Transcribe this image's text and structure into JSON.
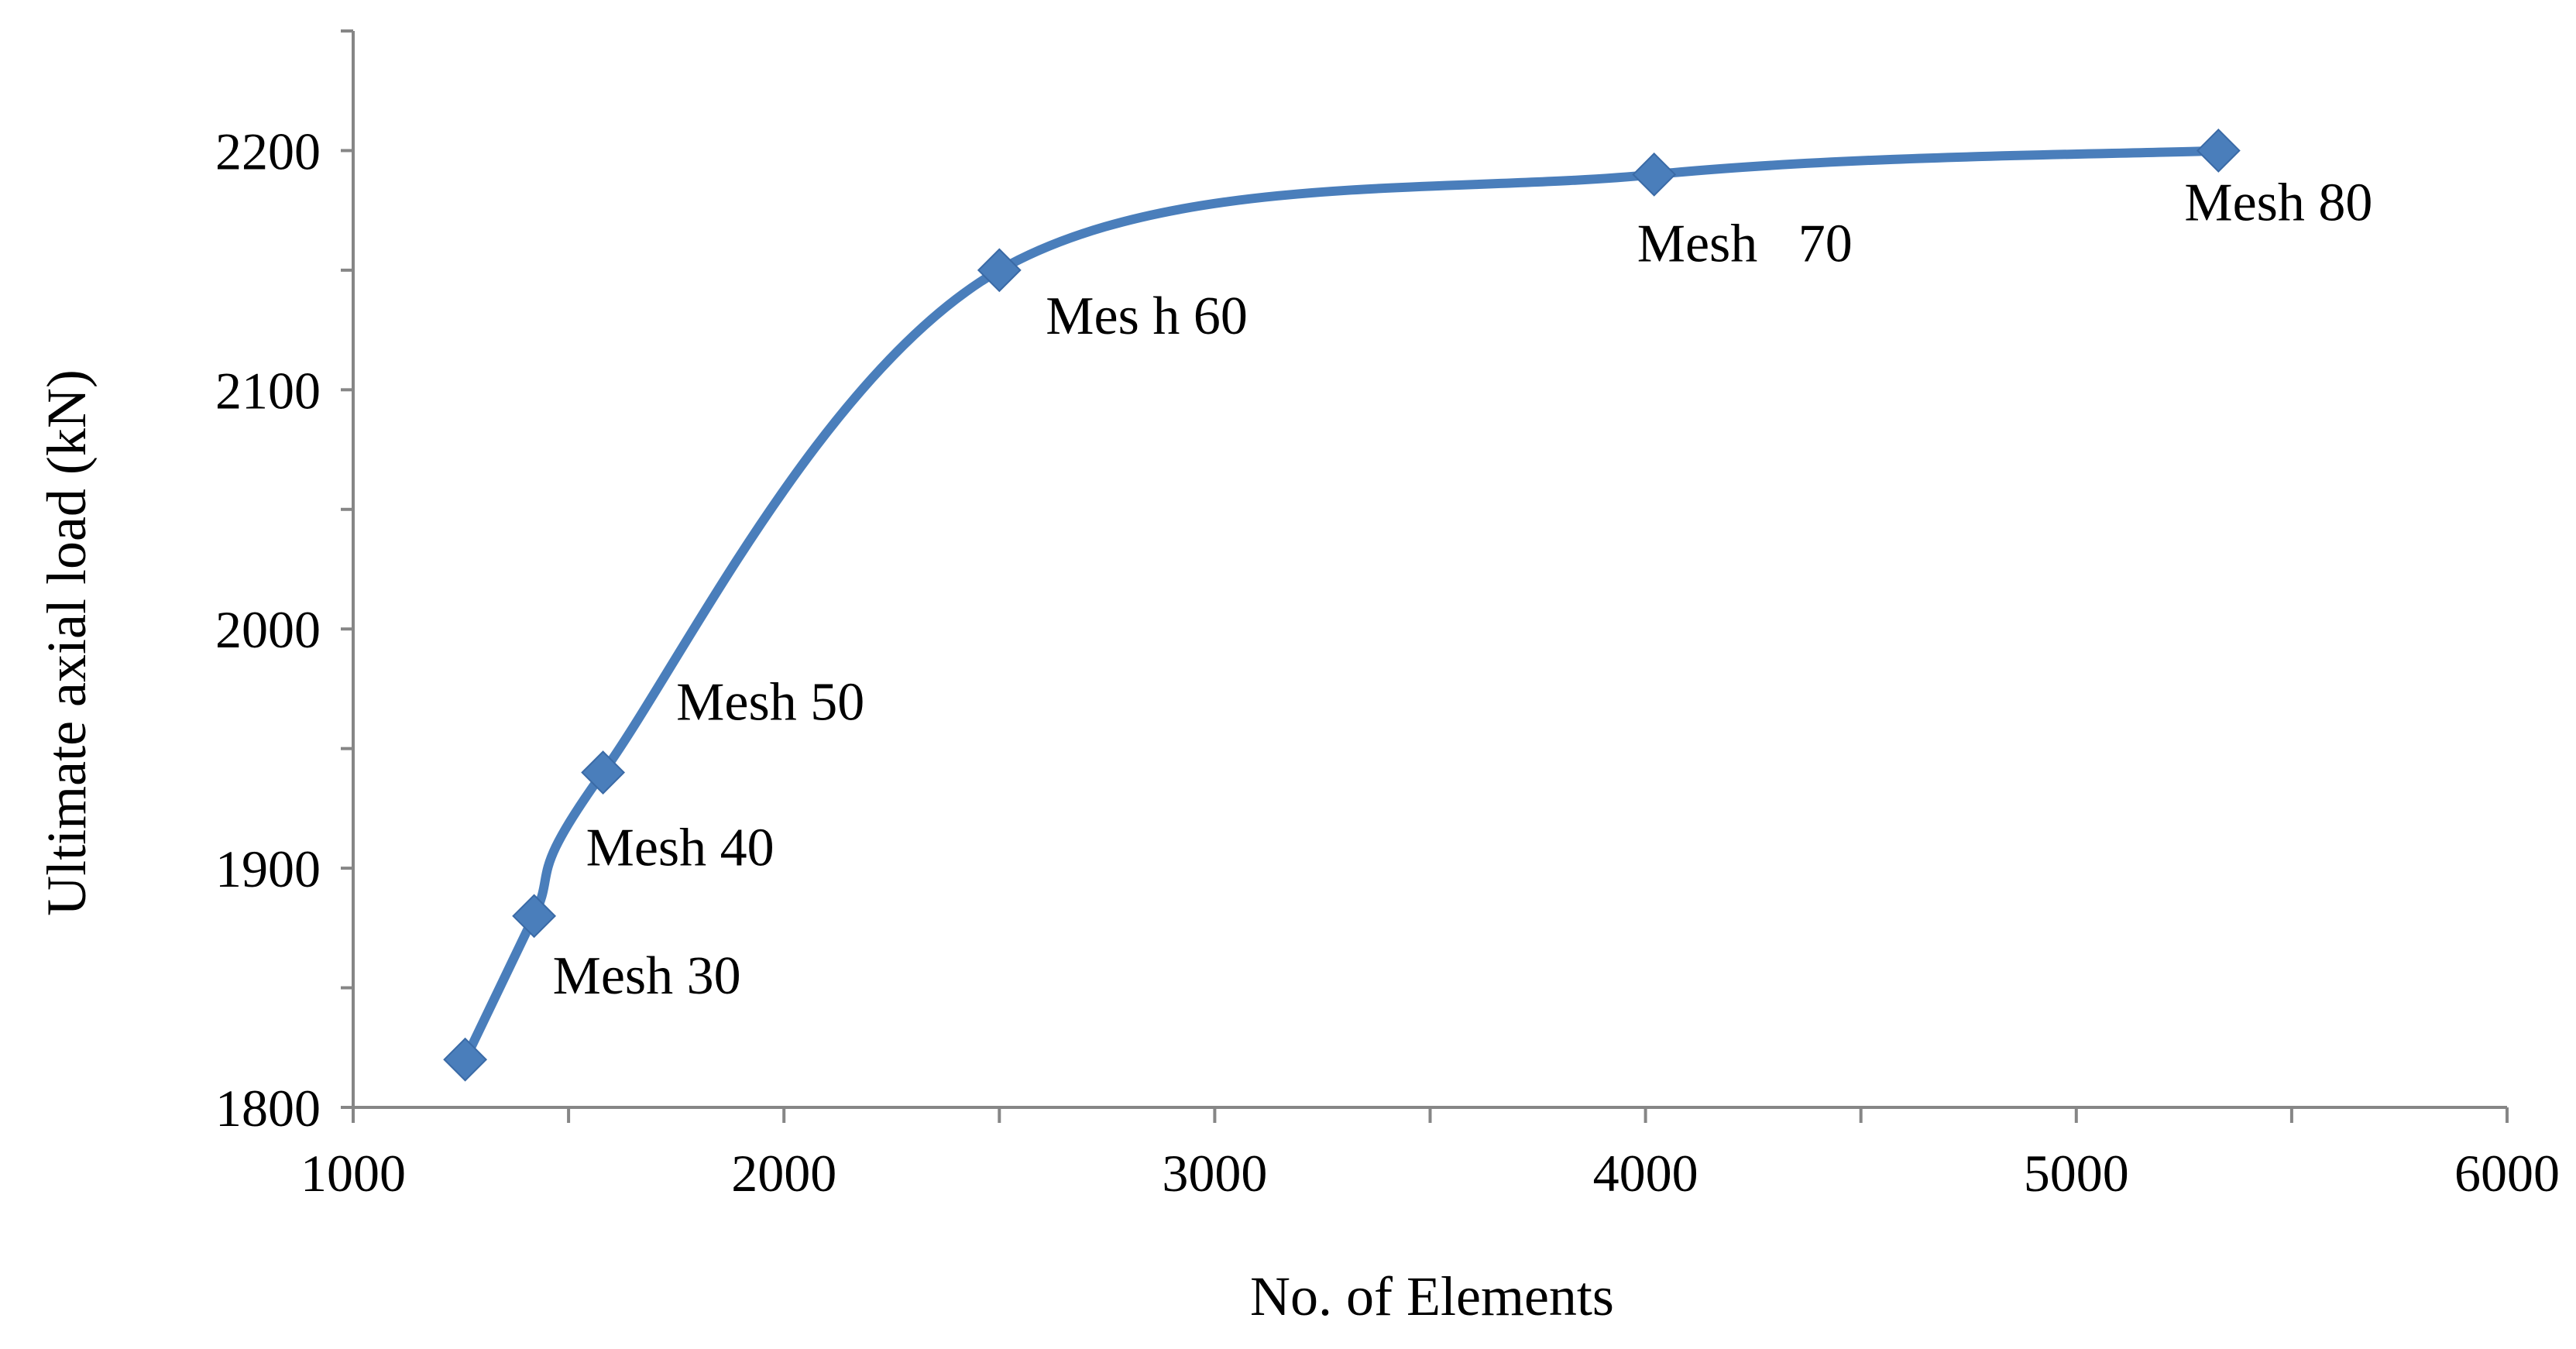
{
  "chart_data": {
    "type": "line",
    "title": "",
    "xlabel": "No. of Elements",
    "ylabel": "Ultimate  axial load (kN)",
    "xlim": [
      1000,
      6000
    ],
    "ylim": [
      1800,
      2250
    ],
    "x_ticks": [
      1000,
      2000,
      3000,
      4000,
      5000,
      6000
    ],
    "x_tick_labels": [
      "1000",
      "2000",
      "3000",
      "4000",
      "5000",
      "6000"
    ],
    "x_minor_ticks": [
      1500,
      2500,
      3500,
      4500,
      5500
    ],
    "y_ticks": [
      1800,
      1850,
      1900,
      1950,
      2000,
      2050,
      2100,
      2150,
      2200,
      2250
    ],
    "y_tick_labels": [
      "1800",
      "",
      "1900",
      "",
      "2000",
      "",
      "2100",
      "",
      "2200",
      ""
    ],
    "grid": false,
    "legend": "none",
    "smooth": true,
    "marker": "diamond",
    "color": "#4a7ebb",
    "series": [
      {
        "x": [
          1260,
          1420,
          1580,
          2500,
          4020,
          5330
        ],
        "y": [
          1820,
          1880,
          1940,
          2150,
          2190,
          2200
        ],
        "point_labels": [
          "",
          "Mesh 30",
          "Mesh 40",
          "Mes h 60",
          "Mesh   70",
          "Mesh 80"
        ]
      }
    ],
    "annotations": [
      {
        "text": "Mesh 50",
        "x": 1750,
        "y": 1962
      }
    ]
  }
}
